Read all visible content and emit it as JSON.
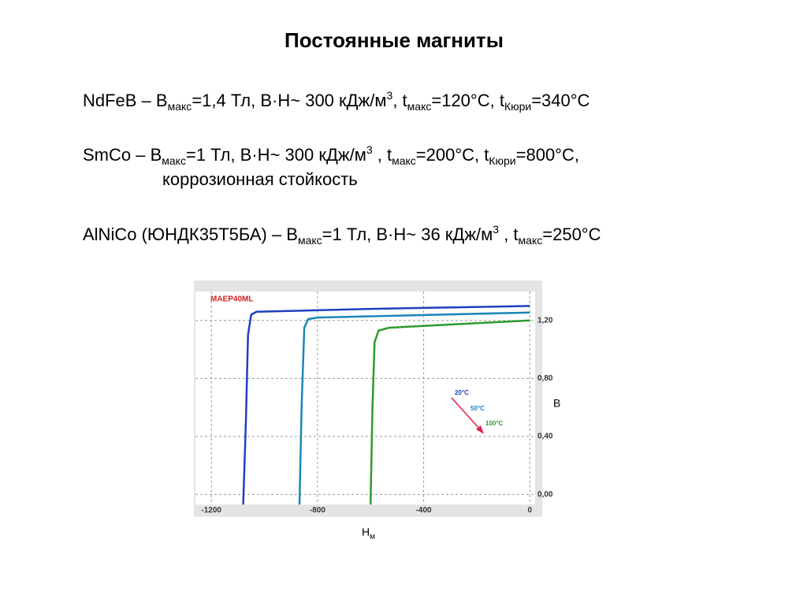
{
  "title": "Постоянные магниты",
  "lines": [
    {
      "parts": [
        {
          "text": "NdFeB – B"
        },
        {
          "text": "макс",
          "pos": "sub"
        },
        {
          "text": "=1,4 Тл, B·H~ 300 кДж/м"
        },
        {
          "text": "3",
          "pos": "sup"
        },
        {
          "text": ", t"
        },
        {
          "text": "макс",
          "pos": "sub"
        },
        {
          "text": "=120°C, t"
        },
        {
          "text": "Кюри",
          "pos": "sub"
        },
        {
          "text": "=340°C"
        }
      ]
    },
    {
      "parts": [
        {
          "text": "SmCo – B"
        },
        {
          "text": "макс",
          "pos": "sub"
        },
        {
          "text": "=1 Тл, B·H~ 300 кДж/м"
        },
        {
          "text": "3",
          "pos": "sup"
        },
        {
          "text": " , t"
        },
        {
          "text": "макс",
          "pos": "sub"
        },
        {
          "text": "=200°C, t"
        },
        {
          "text": "Кюри",
          "pos": "sub"
        },
        {
          "text": "=800°C,"
        }
      ]
    },
    {
      "indent": true,
      "parts": [
        {
          "text": "коррозионная стойкость"
        }
      ]
    },
    {
      "parts": [
        {
          "text": "AlNiCo (ЮНДК35Т5БА) – B"
        },
        {
          "text": "макс",
          "pos": "sub"
        },
        {
          "text": "=1 Тл, B·H~ 36 кДж/м"
        },
        {
          "text": "3",
          "pos": "sup"
        },
        {
          "text": " , t"
        },
        {
          "text": "макс",
          "pos": "sub"
        },
        {
          "text": "=250°C"
        }
      ]
    }
  ],
  "chart_data": {
    "type": "line",
    "title": "MAEP40ML",
    "y_label": "B",
    "x_label": "H",
    "x_label_sub": "м",
    "xlim": [
      -1260,
      20
    ],
    "ylim": [
      -0.07,
      1.4
    ],
    "xticks": [
      -1200,
      -800,
      -400,
      0
    ],
    "yticks": [
      {
        "value": 0,
        "label": "0,00"
      },
      {
        "value": 0.4,
        "label": "0,40"
      },
      {
        "value": 0.8,
        "label": "0,80"
      },
      {
        "value": 1.2,
        "label": "1,20"
      }
    ],
    "grid": true,
    "arrow_color": "#e0204a",
    "series": [
      {
        "name": "20°C",
        "color": "#1f3fbf",
        "x": [
          -1080,
          -1070,
          -1062,
          -1050,
          -1030,
          -600,
          0
        ],
        "values": [
          -0.07,
          0.5,
          1.1,
          1.24,
          1.26,
          1.28,
          1.3
        ]
      },
      {
        "name": "50°C",
        "color": "#1a86b8",
        "x": [
          -868,
          -860,
          -850,
          -835,
          -800,
          0
        ],
        "values": [
          -0.07,
          0.6,
          1.15,
          1.21,
          1.22,
          1.255
        ]
      },
      {
        "name": "100°C",
        "color": "#2e9a2e",
        "x": [
          -600,
          -593,
          -585,
          -570,
          -530,
          0
        ],
        "values": [
          -0.07,
          0.6,
          1.05,
          1.13,
          1.15,
          1.2
        ]
      }
    ]
  }
}
